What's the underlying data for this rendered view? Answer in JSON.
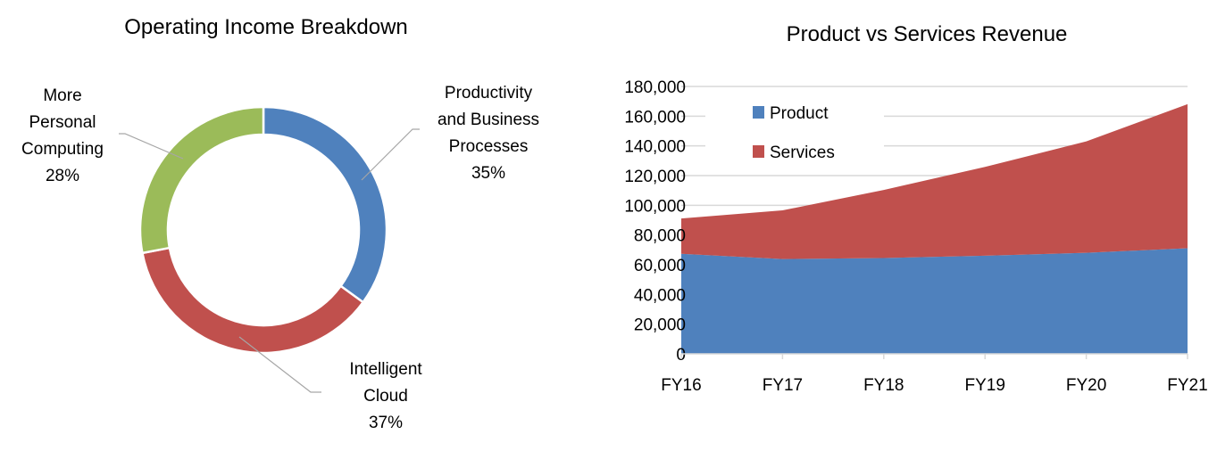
{
  "chart_data": [
    {
      "type": "pie",
      "subtype": "donut",
      "title": "Operating Income Breakdown",
      "slices": [
        {
          "label_lines": [
            "Productivity",
            "and Business",
            "Processes"
          ],
          "label": "Productivity and Business Processes",
          "value": 35,
          "value_label": "35%",
          "color": "#4F81BD"
        },
        {
          "label_lines": [
            "Intelligent",
            "Cloud"
          ],
          "label": "Intelligent Cloud",
          "value": 37,
          "value_label": "37%",
          "color": "#C0504D"
        },
        {
          "label_lines": [
            "More",
            "Personal",
            "Computing"
          ],
          "label": "More Personal Computing",
          "value": 28,
          "value_label": "28%",
          "color": "#9BBB59"
        }
      ]
    },
    {
      "type": "area",
      "stacked": true,
      "title": "Product vs Services Revenue",
      "categories": [
        "FY16",
        "FY17",
        "FY18",
        "FY19",
        "FY20",
        "FY21"
      ],
      "series": [
        {
          "name": "Product",
          "color": "#4F81BD",
          "values": [
            67336,
            63811,
            64497,
            66069,
            68041,
            71074
          ]
        },
        {
          "name": "Services",
          "color": "#C0504D",
          "values": [
            23818,
            32760,
            45863,
            59774,
            74974,
            97014
          ]
        }
      ],
      "ylim": [
        0,
        180000
      ],
      "yticks": [
        0,
        20000,
        40000,
        60000,
        80000,
        100000,
        120000,
        140000,
        160000,
        180000
      ],
      "ytick_labels": [
        "0",
        "20,000",
        "40,000",
        "60,000",
        "80,000",
        "100,000",
        "120,000",
        "140,000",
        "160,000",
        "180,000"
      ],
      "grid": true,
      "legend": "top-left"
    }
  ]
}
